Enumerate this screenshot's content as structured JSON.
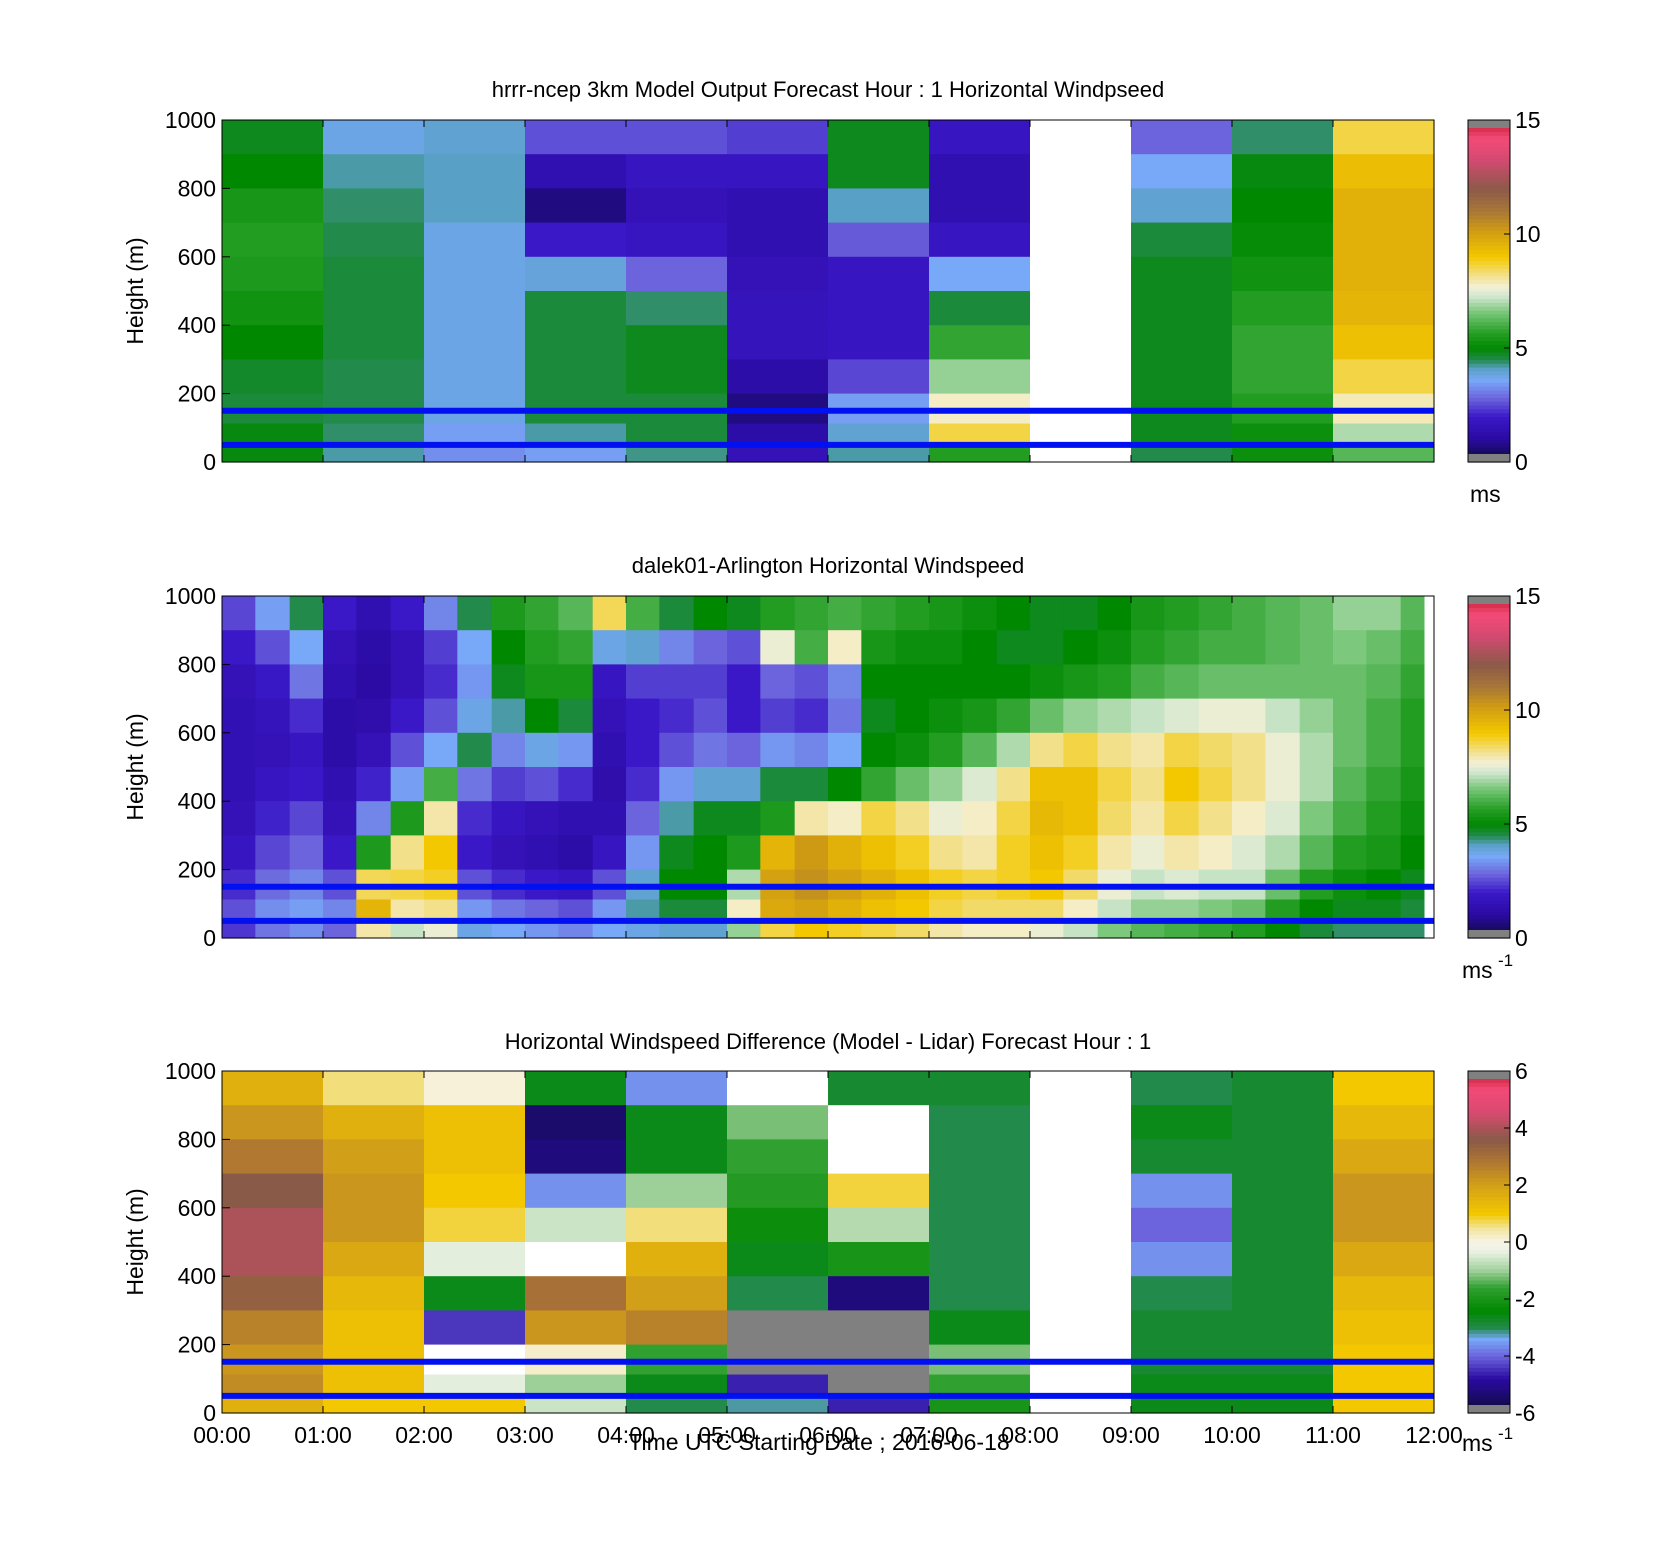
{
  "figure": {
    "xlabel": "Time UTC  Starting Date ; 2016-06-18",
    "x_tick_labels": [
      "00:00",
      "01:00",
      "02:00",
      "03:00",
      "04:00",
      "05:00",
      "06:00",
      "07:00",
      "08:00",
      "09:00",
      "10:00",
      "11:00",
      "12:00"
    ]
  },
  "chart_data": [
    {
      "type": "heatmap",
      "title": "hrrr-ncep 3km Model Output   Forecast Hour : 1 Horizontal Windpseed",
      "ylabel": "Height (m)",
      "xlim": [
        0,
        12
      ],
      "ylim": [
        0,
        1000
      ],
      "y_ticks": [
        0,
        200,
        400,
        600,
        800,
        1000
      ],
      "colorbar": {
        "min": 0,
        "max": 15,
        "ticks": [
          "0",
          "5",
          "10",
          "15"
        ],
        "unit": "ms",
        "unit_sup": "",
        "palette": "speed"
      },
      "heights": [
        950,
        850,
        750,
        650,
        550,
        450,
        350,
        250,
        150,
        75,
        25
      ],
      "columns": [
        {
          "t0": 0,
          "t1": 1,
          "values": [
            4.8,
            5.0,
            5.4,
            5.6,
            5.5,
            5.3,
            5.0,
            4.7,
            4.6,
            4.9,
            4.9
          ]
        },
        {
          "t0": 1,
          "t1": 2,
          "values": [
            3.8,
            4.2,
            4.4,
            4.5,
            4.6,
            4.6,
            4.6,
            4.5,
            4.5,
            4.4,
            4.2
          ]
        },
        {
          "t0": 2,
          "t1": 3,
          "values": [
            4.0,
            4.1,
            4.1,
            3.8,
            3.8,
            3.8,
            3.8,
            3.8,
            3.8,
            3.5,
            3.3
          ]
        },
        {
          "t0": 3,
          "t1": 4,
          "values": [
            2.6,
            1.4,
            0.7,
            2.0,
            3.9,
            4.6,
            4.6,
            4.6,
            4.6,
            4.2,
            3.5
          ]
        },
        {
          "t0": 4,
          "t1": 5,
          "values": [
            2.6,
            1.8,
            1.6,
            1.8,
            2.8,
            4.4,
            4.8,
            4.8,
            4.6,
            4.6,
            4.3
          ]
        },
        {
          "t0": 5,
          "t1": 6,
          "values": [
            2.4,
            1.8,
            1.4,
            1.4,
            1.6,
            1.7,
            1.7,
            1.2,
            0.7,
            1.2,
            1.6
          ]
        },
        {
          "t0": 6,
          "t1": 7,
          "values": [
            4.8,
            4.8,
            4.1,
            2.7,
            1.8,
            1.8,
            1.8,
            2.5,
            3.5,
            4.0,
            4.2
          ]
        },
        {
          "t0": 7,
          "t1": 8,
          "values": [
            1.8,
            1.4,
            1.4,
            1.8,
            3.6,
            4.6,
            5.8,
            6.8,
            7.8,
            8.6,
            5.6
          ]
        },
        {
          "t0": 8,
          "t1": 9,
          "values": [
            null,
            null,
            null,
            null,
            null,
            null,
            null,
            null,
            null,
            null,
            null
          ]
        },
        {
          "t0": 9,
          "t1": 10,
          "values": [
            2.8,
            3.6,
            4.0,
            4.6,
            4.8,
            4.8,
            4.8,
            4.8,
            4.8,
            4.8,
            4.5
          ]
        },
        {
          "t0": 10,
          "t1": 11,
          "values": [
            4.4,
            4.9,
            5.0,
            5.1,
            5.3,
            5.6,
            5.8,
            5.8,
            5.6,
            5.2,
            5.2
          ]
        },
        {
          "t0": 11,
          "t1": 12,
          "values": [
            8.6,
            9.3,
            9.6,
            9.6,
            9.6,
            9.5,
            9.2,
            8.6,
            7.9,
            7.0,
            6.2
          ]
        }
      ],
      "reference_lines_m": [
        150,
        50
      ]
    },
    {
      "type": "heatmap",
      "title": "dalek01-Arlington  Horizontal Windspeed",
      "ylabel": "Height (m)",
      "xlim": [
        0,
        12
      ],
      "ylim": [
        0,
        1000
      ],
      "y_ticks": [
        0,
        200,
        400,
        600,
        800,
        1000
      ],
      "colorbar": {
        "min": 0,
        "max": 15,
        "ticks": [
          "0",
          "5",
          "10",
          "15"
        ],
        "unit": "ms",
        "unit_sup": "-1",
        "palette": "speed"
      },
      "heights": [
        950,
        850,
        750,
        650,
        550,
        450,
        350,
        250,
        150,
        75,
        25
      ],
      "columns": [
        {
          "t0": 0.0,
          "t1": 0.33,
          "values": [
            2.5,
            2.0,
            1.6,
            1.5,
            1.5,
            1.5,
            1.6,
            1.8,
            2.2,
            2.6,
            2.3
          ]
        },
        {
          "t0": 0.33,
          "t1": 0.67,
          "values": [
            3.5,
            2.6,
            1.9,
            1.7,
            1.6,
            1.8,
            2.1,
            2.5,
            2.9,
            3.3,
            3.0
          ]
        },
        {
          "t0": 0.67,
          "t1": 1.0,
          "values": [
            4.5,
            3.6,
            3.0,
            2.2,
            1.8,
            2.0,
            2.5,
            2.8,
            3.2,
            3.5,
            3.3
          ]
        },
        {
          "t0": 1.0,
          "t1": 1.33,
          "values": [
            2.0,
            1.6,
            1.4,
            1.2,
            1.2,
            1.4,
            1.6,
            2.0,
            2.6,
            3.2,
            2.8
          ]
        },
        {
          "t0": 1.33,
          "t1": 1.67,
          "values": [
            1.4,
            1.2,
            1.1,
            1.3,
            1.6,
            2.1,
            3.2,
            5.5,
            8.5,
            9.5,
            8.0
          ]
        },
        {
          "t0": 1.67,
          "t1": 2.0,
          "values": [
            2.0,
            1.6,
            1.6,
            2.0,
            2.6,
            3.5,
            5.5,
            8.2,
            8.6,
            8.0,
            7.2
          ]
        },
        {
          "t0": 2.0,
          "t1": 2.33,
          "values": [
            3.2,
            2.4,
            2.2,
            2.6,
            3.6,
            6.0,
            8.0,
            9.0,
            8.8,
            8.2,
            7.6
          ]
        },
        {
          "t0": 2.33,
          "t1": 2.67,
          "values": [
            4.5,
            3.6,
            3.4,
            3.8,
            4.5,
            3.0,
            2.2,
            2.0,
            2.6,
            3.4,
            3.8
          ]
        },
        {
          "t0": 2.67,
          "t1": 3.0,
          "values": [
            5.5,
            5.0,
            4.8,
            4.2,
            3.2,
            2.4,
            1.8,
            1.6,
            2.2,
            3.0,
            3.6
          ]
        },
        {
          "t0": 3.0,
          "t1": 3.33,
          "values": [
            5.8,
            5.6,
            5.4,
            5.0,
            3.8,
            2.6,
            1.6,
            1.4,
            2.0,
            2.8,
            3.4
          ]
        },
        {
          "t0": 3.33,
          "t1": 3.67,
          "values": [
            6.2,
            5.8,
            5.4,
            4.6,
            3.4,
            2.2,
            1.4,
            1.2,
            1.8,
            2.6,
            3.2
          ]
        },
        {
          "t0": 3.67,
          "t1": 4.0,
          "values": [
            8.5,
            3.8,
            1.8,
            1.6,
            1.4,
            1.3,
            1.4,
            1.8,
            2.6,
            3.4,
            3.6
          ]
        },
        {
          "t0": 4.0,
          "t1": 4.33,
          "values": [
            6.0,
            4.0,
            2.4,
            2.0,
            2.0,
            2.2,
            2.8,
            3.4,
            4.0,
            4.2,
            3.8
          ]
        },
        {
          "t0": 4.33,
          "t1": 4.67,
          "values": [
            4.6,
            3.2,
            2.4,
            2.2,
            2.6,
            3.4,
            4.2,
            4.8,
            5.0,
            4.6,
            4.0
          ]
        },
        {
          "t0": 4.67,
          "t1": 5.0,
          "values": [
            5.0,
            2.8,
            2.4,
            2.6,
            3.0,
            4.0,
            4.8,
            5.0,
            5.0,
            4.6,
            4.0
          ]
        },
        {
          "t0": 5.0,
          "t1": 5.33,
          "values": [
            4.8,
            2.6,
            2.0,
            2.0,
            2.8,
            4.0,
            4.8,
            5.5,
            7.0,
            7.8,
            6.8
          ]
        },
        {
          "t0": 5.33,
          "t1": 5.67,
          "values": [
            5.6,
            7.6,
            2.8,
            2.4,
            3.4,
            4.6,
            5.5,
            9.5,
            10.0,
            9.8,
            8.6
          ]
        },
        {
          "t0": 5.67,
          "t1": 6.0,
          "values": [
            5.8,
            6.0,
            2.6,
            2.2,
            3.2,
            4.6,
            8.0,
            10.2,
            10.4,
            10.0,
            9.0
          ]
        },
        {
          "t0": 6.0,
          "t1": 6.33,
          "values": [
            6.0,
            7.8,
            3.2,
            3.0,
            3.6,
            5.0,
            7.8,
            9.6,
            10.0,
            9.6,
            8.8
          ]
        },
        {
          "t0": 6.33,
          "t1": 6.67,
          "values": [
            5.8,
            5.4,
            5.0,
            4.8,
            5.0,
            5.8,
            8.6,
            9.2,
            9.6,
            9.2,
            8.6
          ]
        },
        {
          "t0": 6.67,
          "t1": 7.0,
          "values": [
            5.6,
            5.2,
            5.0,
            5.0,
            5.2,
            6.4,
            8.2,
            8.8,
            9.2,
            9.0,
            8.4
          ]
        },
        {
          "t0": 7.0,
          "t1": 7.33,
          "values": [
            5.4,
            5.2,
            5.0,
            5.2,
            5.6,
            6.8,
            7.6,
            8.2,
            8.8,
            8.6,
            8.0
          ]
        },
        {
          "t0": 7.33,
          "t1": 7.67,
          "values": [
            5.2,
            5.0,
            5.0,
            5.4,
            6.2,
            7.4,
            7.8,
            8.0,
            8.6,
            8.4,
            7.8
          ]
        },
        {
          "t0": 7.67,
          "t1": 8.0,
          "values": [
            5.0,
            4.8,
            5.0,
            5.8,
            7.0,
            8.2,
            8.6,
            8.8,
            8.8,
            8.4,
            7.8
          ]
        },
        {
          "t0": 8.0,
          "t1": 8.33,
          "values": [
            4.8,
            4.8,
            5.2,
            6.4,
            8.2,
            9.2,
            9.4,
            9.2,
            9.0,
            8.4,
            7.6
          ]
        },
        {
          "t0": 8.33,
          "t1": 8.67,
          "values": [
            4.8,
            5.0,
            5.4,
            6.8,
            8.6,
            9.2,
            9.2,
            8.8,
            8.4,
            7.8,
            7.2
          ]
        },
        {
          "t0": 8.67,
          "t1": 9.0,
          "values": [
            5.0,
            5.2,
            5.6,
            7.0,
            8.2,
            8.6,
            8.4,
            8.0,
            7.6,
            7.2,
            6.6
          ]
        },
        {
          "t0": 9.0,
          "t1": 9.33,
          "values": [
            5.4,
            5.6,
            6.0,
            7.2,
            8.0,
            8.2,
            8.0,
            7.6,
            7.2,
            6.8,
            6.2
          ]
        },
        {
          "t0": 9.33,
          "t1": 9.67,
          "values": [
            5.6,
            5.8,
            6.2,
            7.4,
            8.6,
            9.0,
            8.6,
            8.0,
            7.4,
            6.8,
            6.0
          ]
        },
        {
          "t0": 9.67,
          "t1": 10.0,
          "values": [
            5.8,
            6.0,
            6.4,
            7.6,
            8.4,
            8.6,
            8.2,
            7.8,
            7.2,
            6.6,
            5.8
          ]
        },
        {
          "t0": 10.0,
          "t1": 10.33,
          "values": [
            6.0,
            6.0,
            6.4,
            7.6,
            8.2,
            8.2,
            7.8,
            7.4,
            7.2,
            6.4,
            5.6
          ]
        },
        {
          "t0": 10.33,
          "t1": 10.67,
          "values": [
            6.2,
            6.2,
            6.4,
            7.2,
            7.6,
            7.6,
            7.4,
            7.0,
            6.4,
            5.6,
            5.0
          ]
        },
        {
          "t0": 10.67,
          "t1": 11.0,
          "values": [
            6.4,
            6.4,
            6.4,
            6.8,
            7.0,
            7.0,
            6.6,
            6.2,
            5.6,
            5.0,
            4.6
          ]
        },
        {
          "t0": 11.0,
          "t1": 11.33,
          "values": [
            6.8,
            6.6,
            6.4,
            6.4,
            6.4,
            6.2,
            6.0,
            5.6,
            5.2,
            4.8,
            4.4
          ]
        },
        {
          "t0": 11.33,
          "t1": 11.67,
          "values": [
            6.8,
            6.4,
            6.2,
            6.0,
            6.0,
            5.8,
            5.6,
            5.4,
            5.0,
            4.8,
            4.4
          ]
        },
        {
          "t0": 11.67,
          "t1": 11.9,
          "values": [
            6.2,
            6.0,
            5.8,
            5.6,
            5.6,
            5.4,
            5.2,
            5.0,
            4.8,
            4.6,
            4.4
          ]
        }
      ],
      "reference_lines_m": [
        150,
        50
      ]
    },
    {
      "type": "heatmap",
      "title": "Horizontal Windspeed Difference (Model - Lidar) Forecast Hour : 1",
      "ylabel": "Height (m)",
      "xlim": [
        0,
        12
      ],
      "ylim": [
        0,
        1000
      ],
      "y_ticks": [
        0,
        200,
        400,
        600,
        800,
        1000
      ],
      "colorbar": {
        "min": -6,
        "max": 6,
        "ticks": [
          "-6",
          "-4",
          "-2",
          "0",
          "2",
          "4",
          "6"
        ],
        "unit": "ms",
        "unit_sup": "-1",
        "palette": "diff"
      },
      "heights": [
        950,
        850,
        750,
        650,
        550,
        450,
        350,
        250,
        150,
        75,
        25
      ],
      "columns": [
        {
          "t0": 0,
          "t1": 1,
          "values": [
            1.6,
            2.2,
            2.8,
            3.6,
            4.0,
            4.0,
            3.4,
            2.6,
            2.2,
            2.4,
            1.6
          ]
        },
        {
          "t0": 1,
          "t1": 2,
          "values": [
            0.6,
            1.6,
            2.0,
            2.2,
            2.2,
            1.8,
            1.4,
            1.2,
            1.2,
            1.2,
            1.0
          ]
        },
        {
          "t0": 2,
          "t1": 3,
          "values": [
            0.1,
            1.2,
            1.2,
            1.0,
            0.8,
            -0.4,
            -2.6,
            -4.4,
            null,
            -0.4,
            1.0
          ]
        },
        {
          "t0": 3,
          "t1": 4,
          "values": [
            -2.6,
            -5.4,
            -5.2,
            -3.6,
            -0.6,
            null,
            3.0,
            2.2,
            0.2,
            -1.0,
            -0.6
          ]
        },
        {
          "t0": 4,
          "t1": 5,
          "values": [
            -3.6,
            -2.6,
            -2.6,
            -1.0,
            0.6,
            1.6,
            2.0,
            2.6,
            -1.6,
            -2.6,
            -3.0
          ]
        },
        {
          "t0": 5,
          "t1": 6,
          "values": [
            null,
            -1.2,
            -1.6,
            -1.8,
            -2.2,
            -2.6,
            -3.0,
            -6.8,
            -6.8,
            -4.6,
            -3.2
          ]
        },
        {
          "t0": 6,
          "t1": 7,
          "values": [
            -2.8,
            null,
            null,
            0.8,
            -0.8,
            -2.0,
            -5.2,
            -6.8,
            -6.8,
            -6.8,
            -4.6
          ]
        },
        {
          "t0": 7,
          "t1": 8,
          "values": [
            -2.8,
            -3.0,
            -3.0,
            -3.0,
            -3.0,
            -3.0,
            -3.0,
            -2.6,
            -1.2,
            -1.6,
            -2.0
          ]
        },
        {
          "t0": 8,
          "t1": 9,
          "values": [
            null,
            null,
            null,
            null,
            null,
            null,
            null,
            null,
            null,
            null,
            null
          ]
        },
        {
          "t0": 9,
          "t1": 10,
          "values": [
            -3.0,
            -2.6,
            -2.8,
            -3.6,
            -4.0,
            -3.6,
            -3.0,
            -2.8,
            -2.8,
            -2.6,
            -2.6
          ]
        },
        {
          "t0": 10,
          "t1": 11,
          "values": [
            -2.8,
            -2.8,
            -2.8,
            -2.8,
            -2.8,
            -2.8,
            -2.8,
            -2.8,
            -2.8,
            -2.6,
            -2.6
          ]
        },
        {
          "t0": 11,
          "t1": 12,
          "values": [
            1.0,
            1.4,
            1.8,
            2.2,
            2.2,
            1.8,
            1.4,
            1.2,
            1.0,
            1.0,
            1.0
          ]
        }
      ],
      "reference_lines_m": [
        150,
        50
      ]
    }
  ]
}
